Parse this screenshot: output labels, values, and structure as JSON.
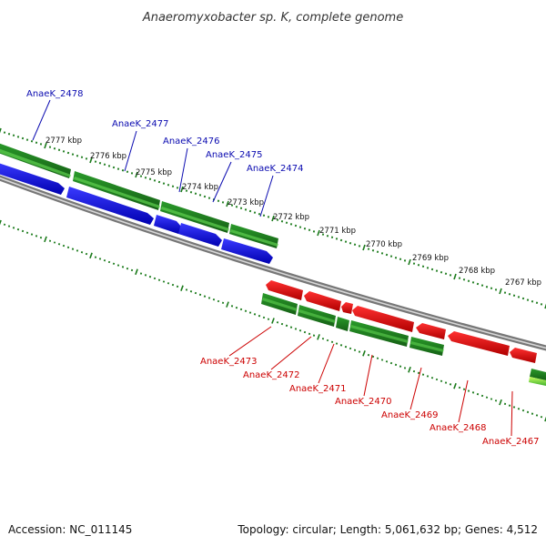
{
  "title": "Anaeromyxobacter sp. K, complete genome",
  "accession": "Accession: NC_011145",
  "topology": "Topology: circular; Length: 5,061,632 bp; Genes: 4,512",
  "colors": {
    "forward_gene": "#1010dd",
    "reverse_gene": "#dd0000",
    "cds_dark": "#1e7f1e",
    "cds_light": "#52c94a",
    "backbone": "#888888",
    "tick": "#1a7a1a",
    "label_forward": "#0a0ab0",
    "label_reverse": "#cc0000"
  },
  "scale_ticks": [
    "2777 kbp",
    "2776 kbp",
    "2775 kbp",
    "2774 kbp",
    "2773 kbp",
    "2772 kbp",
    "2771 kbp",
    "2770 kbp",
    "2769 kbp",
    "2768 kbp",
    "2767 kbp"
  ],
  "forward_genes": [
    "AnaeK_2478",
    "AnaeK_2477",
    "AnaeK_2476",
    "AnaeK_2475",
    "AnaeK_2474"
  ],
  "reverse_genes": [
    "AnaeK_2473",
    "AnaeK_2472",
    "AnaeK_2471",
    "AnaeK_2470",
    "AnaeK_2469",
    "AnaeK_2468",
    "AnaeK_2467"
  ]
}
